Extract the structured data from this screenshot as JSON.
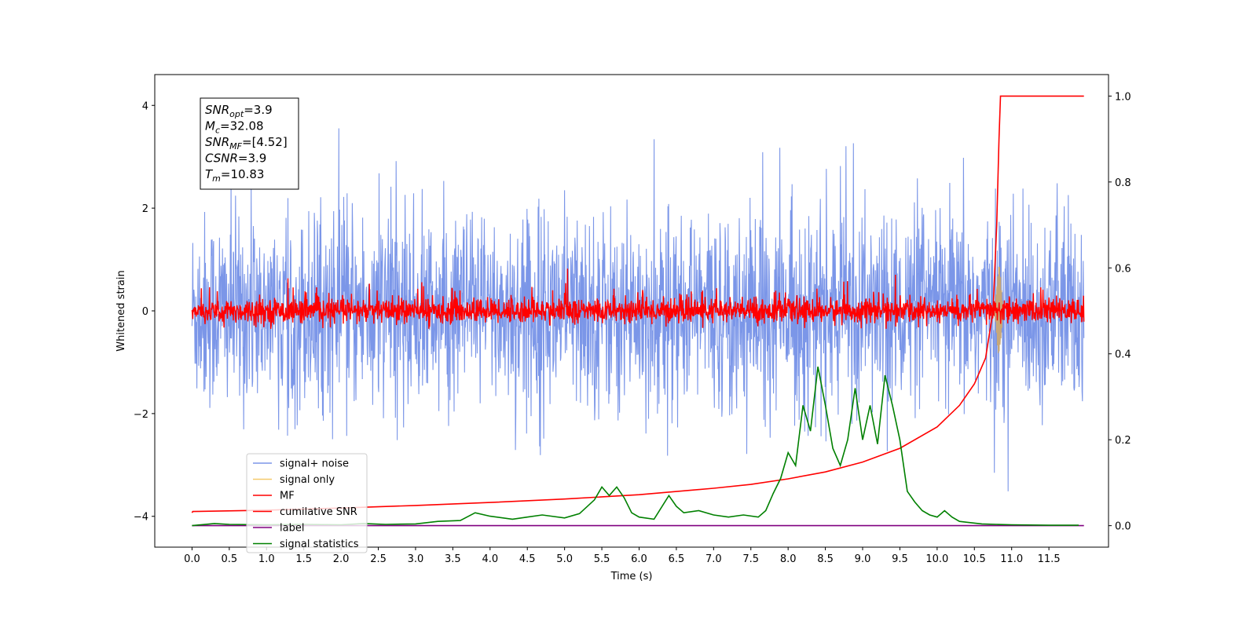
{
  "chart_data": {
    "type": "line",
    "xlabel": "Time (s)",
    "ylabel": "Whitened strain",
    "xlim": [
      -0.5,
      12.3
    ],
    "ylim": [
      -4.6,
      4.6
    ],
    "y2lim": [
      -0.05,
      1.05
    ],
    "x_ticks": [
      0.0,
      0.5,
      1.0,
      1.5,
      2.0,
      2.5,
      3.0,
      3.5,
      4.0,
      4.5,
      5.0,
      5.5,
      6.0,
      6.5,
      7.0,
      7.5,
      8.0,
      8.5,
      9.0,
      9.5,
      10.0,
      10.5,
      11.0,
      11.5
    ],
    "x_tick_labels": [
      "0.0",
      "0.5",
      "1.0",
      "1.5",
      "2.0",
      "2.5",
      "3.0",
      "3.5",
      "4.0",
      "4.5",
      "5.0",
      "5.5",
      "6.0",
      "6.5",
      "7.0",
      "7.5",
      "8.0",
      "8.5",
      "9.0",
      "9.5",
      "10.0",
      "10.5",
      "11.0",
      "11.5"
    ],
    "y_ticks": [
      -4,
      -2,
      0,
      2,
      4
    ],
    "y_tick_labels": [
      "−4",
      "−2",
      "0",
      "2",
      "4"
    ],
    "y2_ticks": [
      0.0,
      0.2,
      0.4,
      0.6,
      0.8,
      1.0
    ],
    "y2_tick_labels": [
      "0.0",
      "0.2",
      "0.4",
      "0.6",
      "0.8",
      "1.0"
    ],
    "legend_position": "lower-left",
    "grid": false,
    "info_box": {
      "lines": [
        {
          "var": "SNR",
          "sub": "opt",
          "value": "=3.9"
        },
        {
          "var": "M",
          "sub": "c",
          "value": "=32.08"
        },
        {
          "var": "SNR",
          "sub": "MF",
          "value": "=[4.52]"
        },
        {
          "var": "CSNR",
          "sub": "",
          "value": "=3.9"
        },
        {
          "var": "T",
          "sub": "m",
          "value": "=10.83"
        }
      ]
    },
    "series": [
      {
        "name": "signal+ noise",
        "color": "#7b96e8",
        "axis": "left",
        "kind": "noise",
        "t_start": 0.0,
        "t_end": 11.97,
        "envelope": [
          -3.0,
          3.0
        ],
        "mean": 0.0
      },
      {
        "name": "signal only",
        "color": "#f5c96b",
        "axis": "left",
        "kind": "chirp",
        "t_start": 10.75,
        "t_end": 10.9,
        "peak": 0.9
      },
      {
        "name": "MF",
        "color": "#ff0000",
        "axis": "left",
        "kind": "noise",
        "t_start": 0.0,
        "t_end": 11.97,
        "envelope": [
          -0.35,
          0.6
        ],
        "mean": 0.0
      },
      {
        "name": "cumilative SNR",
        "color": "#ff0000",
        "axis": "right",
        "x": [
          0.0,
          0.01,
          1.0,
          2.0,
          3.0,
          4.0,
          5.0,
          6.0,
          7.0,
          7.5,
          8.0,
          8.5,
          9.0,
          9.5,
          10.0,
          10.3,
          10.5,
          10.65,
          10.75,
          10.8,
          10.83,
          10.85,
          11.0,
          11.97
        ],
        "y": [
          0.03,
          0.033,
          0.036,
          0.041,
          0.047,
          0.054,
          0.062,
          0.072,
          0.087,
          0.096,
          0.109,
          0.125,
          0.148,
          0.18,
          0.23,
          0.28,
          0.33,
          0.39,
          0.5,
          0.7,
          0.9,
          1.0,
          1.0,
          1.0
        ]
      },
      {
        "name": "label",
        "color": "#800080",
        "axis": "right",
        "x": [
          0.0,
          11.97
        ],
        "y": [
          0.0,
          0.0
        ]
      },
      {
        "name": "signal statistics",
        "color": "#008000",
        "axis": "right",
        "x": [
          0.0,
          0.3,
          0.5,
          1.0,
          1.5,
          2.0,
          2.3,
          2.6,
          3.0,
          3.3,
          3.6,
          3.8,
          4.0,
          4.3,
          4.5,
          4.7,
          5.0,
          5.2,
          5.4,
          5.5,
          5.6,
          5.7,
          5.8,
          5.9,
          6.0,
          6.2,
          6.4,
          6.5,
          6.6,
          6.8,
          7.0,
          7.2,
          7.4,
          7.6,
          7.7,
          7.8,
          7.9,
          8.0,
          8.1,
          8.2,
          8.3,
          8.4,
          8.5,
          8.6,
          8.7,
          8.8,
          8.9,
          9.0,
          9.1,
          9.2,
          9.3,
          9.4,
          9.5,
          9.6,
          9.7,
          9.8,
          9.9,
          10.0,
          10.1,
          10.2,
          10.3,
          10.4,
          10.6,
          10.8,
          11.0,
          11.5,
          11.9
        ],
        "y": [
          0.0,
          0.005,
          0.003,
          0.002,
          0.003,
          0.002,
          0.005,
          0.003,
          0.004,
          0.01,
          0.012,
          0.03,
          0.022,
          0.015,
          0.02,
          0.025,
          0.018,
          0.028,
          0.06,
          0.09,
          0.07,
          0.09,
          0.065,
          0.03,
          0.02,
          0.015,
          0.07,
          0.045,
          0.03,
          0.035,
          0.025,
          0.02,
          0.025,
          0.02,
          0.035,
          0.075,
          0.11,
          0.17,
          0.14,
          0.28,
          0.22,
          0.37,
          0.28,
          0.18,
          0.14,
          0.2,
          0.32,
          0.2,
          0.28,
          0.19,
          0.35,
          0.28,
          0.2,
          0.08,
          0.055,
          0.035,
          0.025,
          0.02,
          0.035,
          0.02,
          0.01,
          0.008,
          0.004,
          0.003,
          0.002,
          0.001,
          0.001
        ]
      }
    ]
  }
}
